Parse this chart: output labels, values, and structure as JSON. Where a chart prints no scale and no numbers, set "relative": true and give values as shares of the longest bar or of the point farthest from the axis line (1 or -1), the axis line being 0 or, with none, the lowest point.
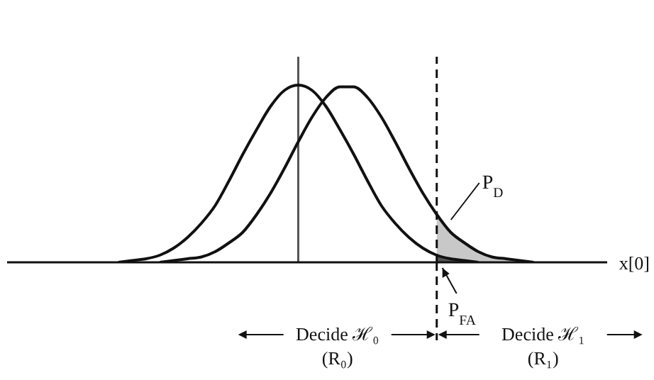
{
  "chart_data": {
    "type": "line",
    "relative": true,
    "xlabel": "x[0]",
    "marker": "none",
    "categories": [
      null,
      null,
      null,
      null,
      null,
      null,
      null,
      null,
      null,
      null,
      null,
      null,
      null,
      null,
      null,
      null,
      null,
      null,
      null,
      null,
      null,
      null,
      null,
      null,
      null,
      null,
      null,
      null,
      null,
      null,
      null,
      null,
      null,
      null,
      null,
      null,
      null,
      null,
      null,
      null,
      null,
      null,
      null
    ],
    "series": [
      {
        "type": "area",
        "color": "#c8c8c8",
        "values": [
          null,
          null,
          null,
          null,
          null,
          null,
          null,
          null,
          null,
          null,
          null,
          null,
          null,
          null,
          null,
          null,
          null,
          null,
          null,
          null,
          null,
          null,
          null,
          null,
          null,
          null,
          null,
          null,
          null,
          null,
          0.27,
          0.17,
          0.11,
          0.06,
          0.03,
          0.02,
          0.01,
          0,
          null,
          null,
          null,
          null,
          null
        ]
      },
      {
        "type": "area",
        "color": "#555555",
        "values": [
          null,
          null,
          null,
          null,
          null,
          null,
          null,
          null,
          null,
          null,
          null,
          null,
          null,
          null,
          null,
          null,
          null,
          null,
          null,
          null,
          null,
          null,
          null,
          null,
          null,
          null,
          null,
          null,
          null,
          null,
          0.04,
          0.02,
          0.01,
          0,
          null,
          null,
          null,
          null,
          null,
          null,
          null,
          null,
          null
        ]
      },
      {
        "color": "#111111",
        "values": [
          null,
          null,
          null,
          null,
          null,
          null,
          null,
          0,
          0.01,
          0.02,
          0.04,
          0.08,
          0.14,
          0.22,
          0.32,
          0.46,
          0.61,
          0.75,
          0.88,
          0.97,
          1,
          0.97,
          0.88,
          0.75,
          0.61,
          0.46,
          0.32,
          0.22,
          0.14,
          0.08,
          0.04,
          0.02,
          0.01,
          0,
          null,
          null,
          null,
          null,
          null,
          null,
          null,
          null,
          null
        ]
      },
      {
        "color": "#111111",
        "values": [
          null,
          null,
          null,
          null,
          null,
          null,
          null,
          null,
          null,
          null,
          0,
          0.01,
          0.02,
          0.03,
          0.06,
          0.11,
          0.17,
          0.27,
          0.39,
          0.53,
          0.68,
          0.82,
          0.93,
          0.99,
          0.99,
          0.93,
          0.82,
          0.68,
          0.53,
          0.39,
          0.27,
          0.17,
          0.11,
          0.06,
          0.03,
          0.02,
          0.01,
          0,
          null,
          null,
          null,
          null,
          null
        ]
      }
    ],
    "annotations": [
      "P$_{D}$",
      "P$_{FA}$",
      "Decide ℋ₀",
      "(R₀)",
      "Decide ℋ₁",
      "(R₁)"
    ]
  }
}
